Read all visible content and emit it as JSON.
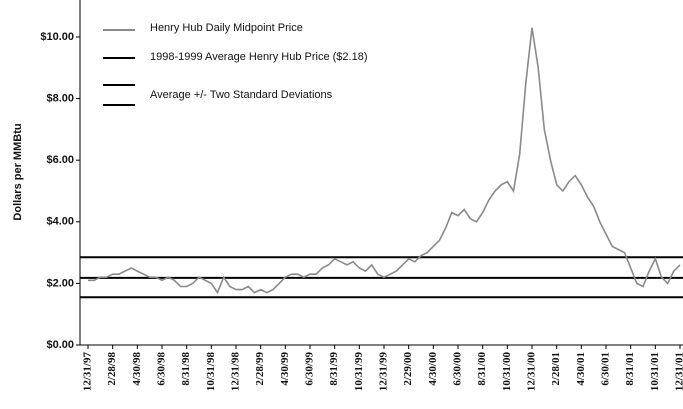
{
  "chart_data": {
    "type": "line",
    "y_label": "Dollars per MMBtu",
    "categories": [
      "12/31/97",
      null,
      null,
      null,
      "2/28/98",
      null,
      null,
      null,
      "4/30/98",
      null,
      null,
      null,
      "6/30/98",
      null,
      null,
      null,
      "8/31/98",
      null,
      null,
      null,
      "10/31/98",
      null,
      null,
      null,
      "12/31/98",
      null,
      null,
      null,
      "2/28/99",
      null,
      null,
      null,
      "4/30/99",
      null,
      null,
      null,
      "6/30/99",
      null,
      null,
      null,
      "8/31/99",
      null,
      null,
      null,
      "10/31/99",
      null,
      null,
      null,
      "12/31/99",
      null,
      null,
      null,
      "2/29/00",
      null,
      null,
      null,
      "4/30/00",
      null,
      null,
      null,
      "6/30/00",
      null,
      null,
      null,
      "8/31/00",
      null,
      null,
      null,
      "10/31/00",
      null,
      null,
      null,
      "12/31/00",
      null,
      null,
      null,
      "2/28/01",
      null,
      null,
      null,
      "4/30/01",
      null,
      null,
      null,
      "6/30/01",
      null,
      null,
      null,
      "8/31/01",
      null,
      null,
      null,
      "10/31/01",
      null,
      null,
      null,
      "12/31/01"
    ],
    "series": [
      {
        "name": "Henry Hub Daily Midpoint Price",
        "color": "#8a8a8a",
        "values": [
          2.1,
          2.1,
          2.2,
          2.2,
          2.3,
          2.3,
          2.4,
          2.5,
          2.4,
          2.3,
          2.2,
          2.2,
          2.1,
          2.2,
          2.1,
          1.9,
          1.9,
          2.0,
          2.2,
          2.1,
          2.0,
          1.7,
          2.2,
          1.9,
          1.8,
          1.8,
          1.9,
          1.7,
          1.8,
          1.7,
          1.8,
          2.0,
          2.2,
          2.3,
          2.3,
          2.2,
          2.3,
          2.3,
          2.5,
          2.6,
          2.8,
          2.7,
          2.6,
          2.7,
          2.5,
          2.4,
          2.6,
          2.3,
          2.2,
          2.3,
          2.4,
          2.6,
          2.8,
          2.7,
          2.9,
          3.0,
          3.2,
          3.4,
          3.8,
          4.3,
          4.2,
          4.4,
          4.1,
          4.0,
          4.3,
          4.7,
          5.0,
          5.2,
          5.3,
          5.0,
          6.2,
          8.5,
          10.3,
          9.0,
          7.0,
          6.0,
          5.2,
          5.0,
          5.3,
          5.5,
          5.2,
          4.8,
          4.5,
          4.0,
          3.6,
          3.2,
          3.1,
          3.0,
          2.5,
          2.0,
          1.9,
          2.4,
          2.8,
          2.2,
          2.0,
          2.4,
          2.6
        ]
      }
    ],
    "reference_lines": [
      {
        "name": "1998-1999 Average Henry Hub Price ($2.18)",
        "color": "#000000",
        "values": [
          2.18
        ]
      },
      {
        "name": "Average +/- Two Standard Deviations",
        "color": "#000000",
        "values": [
          2.85,
          1.55
        ]
      }
    ],
    "ylim": [
      0,
      11.2
    ],
    "yticks": [
      {
        "value": 0,
        "label": "$0.00"
      },
      {
        "value": 2,
        "label": "$2.00"
      },
      {
        "value": 4,
        "label": "$4.00"
      },
      {
        "value": 6,
        "label": "$6.00"
      },
      {
        "value": 8,
        "label": "$8.00"
      },
      {
        "value": 10,
        "label": "$10.00"
      }
    ]
  }
}
